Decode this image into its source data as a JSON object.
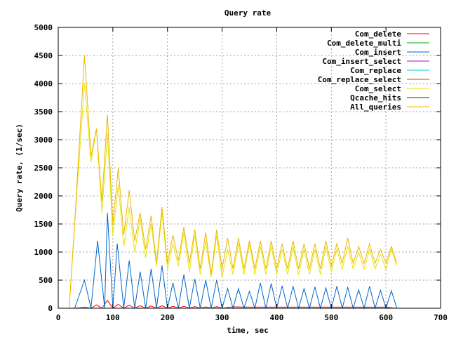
{
  "chart_data": {
    "type": "line",
    "title": "Query rate",
    "xlabel": "time, sec",
    "ylabel": "Query rate, (1/sec)",
    "xlim": [
      0,
      700
    ],
    "ylim": [
      0,
      5000
    ],
    "xticks": [
      0,
      100,
      200,
      300,
      400,
      500,
      600,
      700
    ],
    "yticks": [
      0,
      500,
      1000,
      1500,
      2000,
      2500,
      3000,
      3500,
      4000,
      4500,
      5000
    ],
    "grid": true,
    "legend_position": "top-right",
    "series": [
      {
        "name": "Com_delete",
        "color": "#ff0000",
        "points": [
          [
            30,
            0
          ],
          [
            50,
            15
          ],
          [
            60,
            0
          ],
          [
            70,
            60
          ],
          [
            80,
            0
          ],
          [
            90,
            140
          ],
          [
            100,
            0
          ],
          [
            110,
            70
          ],
          [
            120,
            0
          ],
          [
            130,
            55
          ],
          [
            140,
            0
          ],
          [
            150,
            45
          ],
          [
            160,
            0
          ],
          [
            170,
            40
          ],
          [
            180,
            0
          ],
          [
            190,
            45
          ],
          [
            200,
            0
          ],
          [
            210,
            35
          ],
          [
            220,
            0
          ],
          [
            230,
            35
          ],
          [
            240,
            0
          ],
          [
            250,
            30
          ],
          [
            260,
            0
          ],
          [
            270,
            25
          ],
          [
            280,
            0
          ],
          [
            290,
            30
          ],
          [
            300,
            0
          ],
          [
            320,
            25
          ],
          [
            340,
            20
          ],
          [
            360,
            20
          ],
          [
            380,
            20
          ],
          [
            400,
            20
          ],
          [
            420,
            20
          ],
          [
            440,
            20
          ],
          [
            460,
            20
          ],
          [
            480,
            20
          ],
          [
            500,
            20
          ],
          [
            520,
            20
          ],
          [
            540,
            20
          ],
          [
            560,
            20
          ],
          [
            580,
            20
          ],
          [
            600,
            20
          ],
          [
            615,
            0
          ]
        ]
      },
      {
        "name": "Com_delete_multi",
        "color": "#00b000",
        "points": [
          [
            30,
            0
          ],
          [
            615,
            0
          ]
        ]
      },
      {
        "name": "Com_insert",
        "color": "#0066cc",
        "points": [
          [
            30,
            0
          ],
          [
            48,
            500
          ],
          [
            60,
            0
          ],
          [
            72,
            1200
          ],
          [
            85,
            0
          ],
          [
            90,
            1700
          ],
          [
            100,
            0
          ],
          [
            108,
            1150
          ],
          [
            120,
            0
          ],
          [
            130,
            850
          ],
          [
            140,
            0
          ],
          [
            150,
            650
          ],
          [
            160,
            0
          ],
          [
            170,
            700
          ],
          [
            180,
            0
          ],
          [
            190,
            760
          ],
          [
            200,
            0
          ],
          [
            210,
            450
          ],
          [
            220,
            0
          ],
          [
            230,
            600
          ],
          [
            240,
            0
          ],
          [
            250,
            520
          ],
          [
            260,
            0
          ],
          [
            270,
            500
          ],
          [
            280,
            0
          ],
          [
            290,
            500
          ],
          [
            300,
            0
          ],
          [
            310,
            350
          ],
          [
            320,
            0
          ],
          [
            330,
            350
          ],
          [
            340,
            0
          ],
          [
            350,
            300
          ],
          [
            360,
            0
          ],
          [
            370,
            450
          ],
          [
            380,
            0
          ],
          [
            390,
            440
          ],
          [
            400,
            0
          ],
          [
            410,
            400
          ],
          [
            420,
            0
          ],
          [
            430,
            390
          ],
          [
            440,
            0
          ],
          [
            450,
            350
          ],
          [
            460,
            0
          ],
          [
            470,
            380
          ],
          [
            480,
            0
          ],
          [
            490,
            360
          ],
          [
            500,
            0
          ],
          [
            510,
            390
          ],
          [
            520,
            0
          ],
          [
            530,
            370
          ],
          [
            540,
            0
          ],
          [
            550,
            330
          ],
          [
            560,
            0
          ],
          [
            570,
            390
          ],
          [
            580,
            0
          ],
          [
            590,
            320
          ],
          [
            600,
            0
          ],
          [
            610,
            310
          ],
          [
            620,
            0
          ]
        ]
      },
      {
        "name": "Com_insert_select",
        "color": "#cc00cc",
        "points": [
          [
            30,
            0
          ],
          [
            615,
            0
          ]
        ]
      },
      {
        "name": "Com_replace",
        "color": "#00cccc",
        "points": [
          [
            30,
            0
          ],
          [
            615,
            0
          ]
        ]
      },
      {
        "name": "Com_replace_select",
        "color": "#b05000",
        "points": [
          [
            30,
            0
          ],
          [
            615,
            0
          ]
        ]
      },
      {
        "name": "Com_select",
        "color": "#e6e600",
        "points": [
          [
            20,
            0
          ],
          [
            30,
            1500
          ],
          [
            48,
            4000
          ],
          [
            60,
            2600
          ],
          [
            70,
            3200
          ],
          [
            80,
            1700
          ],
          [
            90,
            3100
          ],
          [
            100,
            1300
          ],
          [
            110,
            2200
          ],
          [
            120,
            1100
          ],
          [
            130,
            1800
          ],
          [
            140,
            1000
          ],
          [
            150,
            1600
          ],
          [
            160,
            900
          ],
          [
            170,
            1500
          ],
          [
            180,
            750
          ],
          [
            190,
            1700
          ],
          [
            200,
            700
          ],
          [
            210,
            1150
          ],
          [
            220,
            750
          ],
          [
            230,
            1350
          ],
          [
            240,
            650
          ],
          [
            250,
            1300
          ],
          [
            260,
            600
          ],
          [
            270,
            1200
          ],
          [
            280,
            550
          ],
          [
            290,
            1300
          ],
          [
            300,
            550
          ],
          [
            310,
            1050
          ],
          [
            320,
            600
          ],
          [
            330,
            1150
          ],
          [
            340,
            600
          ],
          [
            350,
            1150
          ],
          [
            360,
            600
          ],
          [
            370,
            1100
          ],
          [
            380,
            600
          ],
          [
            390,
            1100
          ],
          [
            400,
            600
          ],
          [
            410,
            1050
          ],
          [
            420,
            600
          ],
          [
            430,
            1100
          ],
          [
            440,
            600
          ],
          [
            450,
            1050
          ],
          [
            460,
            600
          ],
          [
            470,
            1050
          ],
          [
            480,
            600
          ],
          [
            490,
            1100
          ],
          [
            500,
            650
          ],
          [
            510,
            1050
          ],
          [
            520,
            700
          ],
          [
            530,
            1100
          ],
          [
            540,
            700
          ],
          [
            550,
            1000
          ],
          [
            560,
            700
          ],
          [
            570,
            1050
          ],
          [
            580,
            700
          ],
          [
            590,
            950
          ],
          [
            600,
            700
          ],
          [
            610,
            1050
          ],
          [
            620,
            750
          ]
        ]
      },
      {
        "name": "Qcache_hits",
        "color": "#303030",
        "points": [
          [
            30,
            0
          ],
          [
            615,
            0
          ]
        ]
      },
      {
        "name": "All_queries",
        "color": "#f0b400",
        "points": [
          [
            20,
            0
          ],
          [
            30,
            1500
          ],
          [
            48,
            4500
          ],
          [
            60,
            2700
          ],
          [
            70,
            3200
          ],
          [
            80,
            1900
          ],
          [
            90,
            3450
          ],
          [
            100,
            1500
          ],
          [
            110,
            2500
          ],
          [
            120,
            1300
          ],
          [
            130,
            2100
          ],
          [
            140,
            1200
          ],
          [
            150,
            1700
          ],
          [
            160,
            1050
          ],
          [
            170,
            1650
          ],
          [
            180,
            800
          ],
          [
            190,
            1800
          ],
          [
            200,
            800
          ],
          [
            210,
            1300
          ],
          [
            220,
            850
          ],
          [
            230,
            1450
          ],
          [
            240,
            800
          ],
          [
            250,
            1400
          ],
          [
            260,
            700
          ],
          [
            270,
            1350
          ],
          [
            280,
            600
          ],
          [
            290,
            1400
          ],
          [
            300,
            700
          ],
          [
            310,
            1250
          ],
          [
            320,
            700
          ],
          [
            330,
            1250
          ],
          [
            340,
            700
          ],
          [
            350,
            1200
          ],
          [
            360,
            700
          ],
          [
            370,
            1200
          ],
          [
            380,
            700
          ],
          [
            390,
            1200
          ],
          [
            400,
            700
          ],
          [
            410,
            1150
          ],
          [
            420,
            700
          ],
          [
            430,
            1200
          ],
          [
            440,
            700
          ],
          [
            450,
            1150
          ],
          [
            460,
            700
          ],
          [
            470,
            1150
          ],
          [
            480,
            700
          ],
          [
            490,
            1200
          ],
          [
            500,
            750
          ],
          [
            510,
            1150
          ],
          [
            520,
            800
          ],
          [
            530,
            1250
          ],
          [
            540,
            800
          ],
          [
            550,
            1100
          ],
          [
            560,
            800
          ],
          [
            570,
            1150
          ],
          [
            580,
            800
          ],
          [
            590,
            1050
          ],
          [
            600,
            800
          ],
          [
            610,
            1100
          ],
          [
            620,
            800
          ]
        ]
      }
    ]
  }
}
